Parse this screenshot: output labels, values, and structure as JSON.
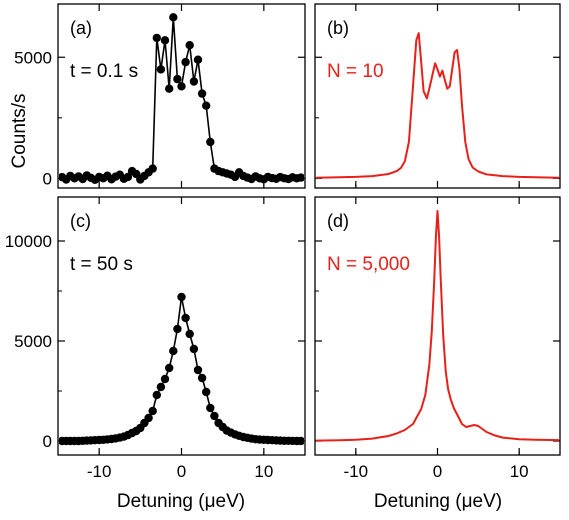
{
  "figure": {
    "ylabel": "Counts/s",
    "xlabel_left": "Detuning (μeV)",
    "xlabel_right": "Detuning (μeV)"
  },
  "colors": {
    "experiment": "#000000",
    "theory": "#e8201a",
    "axes": "#000000",
    "background": "#ffffff"
  },
  "chart_data": [
    {
      "panel": "(a)",
      "type": "line",
      "annotation": "t = 0.1 s",
      "annotation_color": "#000000",
      "marker": "circle",
      "line_color": "#000000",
      "xlim": [
        -15,
        15
      ],
      "ylim": [
        -400,
        7200
      ],
      "xticks": [
        -10,
        0,
        10
      ],
      "xticklabels": [
        "",
        "",
        ""
      ],
      "yticks": [
        0,
        5000
      ],
      "yticklabels": [
        "0",
        "5000"
      ],
      "x": [
        -14.5,
        -14,
        -13.5,
        -13,
        -12.5,
        -12,
        -11.5,
        -11,
        -10.5,
        -10,
        -9.5,
        -9,
        -8.5,
        -8,
        -7.5,
        -7,
        -6.5,
        -6,
        -5.5,
        -5,
        -4.5,
        -4,
        -3.5,
        -3,
        -2.5,
        -2,
        -1.5,
        -1,
        -0.5,
        0,
        0.5,
        1,
        1.5,
        2,
        2.5,
        3,
        3.5,
        4,
        4.5,
        5,
        5.5,
        6,
        6.5,
        7,
        7.5,
        8,
        8.5,
        9,
        9.5,
        10,
        10.5,
        11,
        11.5,
        12,
        12.5,
        13,
        13.5,
        14,
        14.5
      ],
      "y": [
        50,
        -50,
        100,
        0,
        80,
        -30,
        120,
        20,
        -60,
        60,
        0,
        110,
        -40,
        70,
        150,
        -20,
        60,
        300,
        180,
        -50,
        100,
        250,
        400,
        5800,
        4500,
        5700,
        3700,
        6650,
        4100,
        3800,
        4800,
        5500,
        4000,
        4900,
        3500,
        3000,
        1500,
        400,
        300,
        250,
        200,
        150,
        60,
        250,
        100,
        30,
        -30,
        80,
        0,
        -40,
        60,
        10,
        -20,
        50,
        0,
        -30,
        40,
        0,
        30
      ]
    },
    {
      "panel": "(b)",
      "type": "line",
      "annotation": "N = 10",
      "annotation_color": "#e8201a",
      "line_color": "#e8201a",
      "xlim": [
        -15,
        15
      ],
      "ylim": [
        -400,
        7200
      ],
      "xticks": [
        -10,
        0,
        10
      ],
      "xticklabels": [
        "",
        "",
        ""
      ],
      "yticks": [
        0,
        5000
      ],
      "yticklabels": [
        "",
        ""
      ],
      "x": [
        -15,
        -12,
        -10,
        -8,
        -6,
        -5,
        -4.5,
        -4,
        -3.5,
        -3,
        -2.6,
        -2.3,
        -2,
        -1.7,
        -1.3,
        -1,
        -0.6,
        -0.3,
        0,
        0.3,
        0.6,
        0.9,
        1.2,
        1.5,
        1.8,
        2.1,
        2.4,
        2.7,
        3,
        3.4,
        3.8,
        4.3,
        5,
        6,
        8,
        10,
        12,
        15
      ],
      "y": [
        20,
        40,
        60,
        90,
        180,
        300,
        420,
        700,
        1500,
        3800,
        5700,
        6000,
        4800,
        3600,
        3300,
        3700,
        4300,
        4750,
        4500,
        4200,
        4450,
        4050,
        3700,
        3800,
        4500,
        5200,
        5300,
        4500,
        3000,
        1500,
        800,
        450,
        280,
        160,
        90,
        60,
        40,
        20
      ]
    },
    {
      "panel": "(c)",
      "type": "line",
      "annotation": "t = 50 s",
      "annotation_color": "#000000",
      "marker": "circle",
      "line_color": "#000000",
      "xlim": [
        -15,
        15
      ],
      "ylim": [
        -700,
        12200
      ],
      "xticks": [
        -10,
        0,
        10
      ],
      "xticklabels": [
        "-10",
        "0",
        "10"
      ],
      "yticks": [
        0,
        5000,
        10000
      ],
      "yticklabels": [
        "0",
        "5000",
        "10000"
      ],
      "x": [
        -14.5,
        -14,
        -13.5,
        -13,
        -12.5,
        -12,
        -11.5,
        -11,
        -10.5,
        -10,
        -9.5,
        -9,
        -8.5,
        -8,
        -7.5,
        -7,
        -6.5,
        -6,
        -5.5,
        -5,
        -4.5,
        -4,
        -3.5,
        -3,
        -2.5,
        -2,
        -1.5,
        -1,
        -0.5,
        0,
        0.5,
        1,
        1.5,
        2,
        2.5,
        3,
        3.5,
        4,
        4.5,
        5,
        5.5,
        6,
        6.5,
        7,
        7.5,
        8,
        8.5,
        9,
        9.5,
        10,
        10.5,
        11,
        11.5,
        12,
        12.5,
        13,
        13.5,
        14,
        14.5
      ],
      "y": [
        0,
        0,
        0,
        0,
        0,
        10,
        20,
        30,
        40,
        50,
        60,
        80,
        100,
        130,
        170,
        220,
        300,
        400,
        500,
        650,
        900,
        1150,
        1500,
        2300,
        2700,
        3100,
        3650,
        4500,
        5600,
        7200,
        6150,
        5350,
        4600,
        3550,
        3150,
        2450,
        1650,
        1250,
        900,
        700,
        520,
        420,
        330,
        260,
        200,
        160,
        120,
        90,
        70,
        60,
        50,
        40,
        30,
        20,
        10,
        10,
        5,
        0,
        0
      ]
    },
    {
      "panel": "(d)",
      "type": "line",
      "annotation": "N = 5,000",
      "annotation_color": "#e8201a",
      "line_color": "#e8201a",
      "xlim": [
        -15,
        15
      ],
      "ylim": [
        -700,
        12200
      ],
      "xticks": [
        -10,
        0,
        10
      ],
      "xticklabels": [
        "-10",
        "0",
        "10"
      ],
      "yticks": [
        0,
        5000,
        10000
      ],
      "yticklabels": [
        "",
        "",
        ""
      ],
      "x": [
        -15,
        -12,
        -10,
        -8,
        -6,
        -5,
        -4,
        -3,
        -2,
        -1.5,
        -1,
        -0.7,
        -0.4,
        -0.2,
        0,
        0.2,
        0.4,
        0.7,
        1,
        1.3,
        1.6,
        2,
        2.5,
        3,
        3.5,
        4,
        4.5,
        5,
        5.5,
        6,
        7,
        8,
        10,
        12,
        15
      ],
      "y": [
        20,
        40,
        60,
        120,
        250,
        380,
        550,
        850,
        1600,
        2300,
        3800,
        5500,
        8000,
        10200,
        11500,
        10200,
        8000,
        5300,
        3500,
        2600,
        2100,
        1650,
        1250,
        850,
        700,
        750,
        800,
        750,
        600,
        450,
        280,
        170,
        90,
        60,
        40
      ]
    }
  ]
}
